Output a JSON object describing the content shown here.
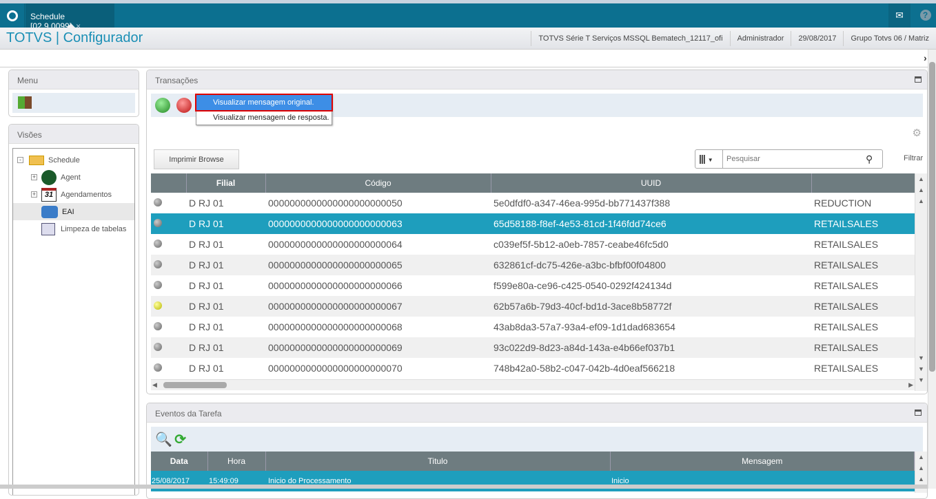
{
  "tab": {
    "title": "Schedule [02.9.0099]",
    "close": "×"
  },
  "header": {
    "app_title": "TOTVS | Configurador",
    "environment": "TOTVS Série T Serviços MSSQL Bematech_12117_ofi",
    "user": "Administrador",
    "date": "29/08/2017",
    "company": "Grupo Totvs 06 / Matriz"
  },
  "icons": {
    "mail": "✉",
    "help": "?",
    "collapse": "›"
  },
  "menu": {
    "title": "Menu"
  },
  "visoes": {
    "title": "Visões",
    "tree": [
      {
        "label": "Schedule",
        "icon": "folder-open-icon"
      },
      {
        "label": "Agent",
        "icon": "radar-icon"
      },
      {
        "label": "Agendamentos",
        "icon": "calendar-icon",
        "badge": "31"
      },
      {
        "label": "EAI",
        "icon": "puzzle-icon"
      },
      {
        "label": "Limpeza de tabelas",
        "icon": "clean-table-icon"
      }
    ]
  },
  "transacoes": {
    "title": "Transações",
    "context_menu": [
      "Visualizar mensagem original.",
      "Visualizar mensagem de resposta."
    ],
    "print_button": "Imprimir Browse",
    "search_placeholder": "Pesquisar",
    "filter": "Filtrar",
    "columns": [
      "",
      "Filial",
      "Código",
      "UUID",
      ""
    ],
    "rows": [
      {
        "status": "gray",
        "filial": "D RJ 01",
        "codigo": "0000000000000000000000050",
        "uuid": "5e0dfdf0-a347-46ea-995d-bb771437f388",
        "tipo": "REDUCTION"
      },
      {
        "status": "gray",
        "filial": "D RJ 01",
        "codigo": "0000000000000000000000063",
        "uuid": "65d58188-f8ef-4e53-81cd-1f46fdd74ce6",
        "tipo": "RETAILSALES",
        "selected": true
      },
      {
        "status": "gray",
        "filial": "D RJ 01",
        "codigo": "0000000000000000000000064",
        "uuid": "c039ef5f-5b12-a0eb-7857-ceabe46fc5d0",
        "tipo": "RETAILSALES"
      },
      {
        "status": "gray",
        "filial": "D RJ 01",
        "codigo": "0000000000000000000000065",
        "uuid": "632861cf-dc75-426e-a3bc-bfbf00f04800",
        "tipo": "RETAILSALES"
      },
      {
        "status": "gray",
        "filial": "D RJ 01",
        "codigo": "0000000000000000000000066",
        "uuid": "f599e80a-ce96-c425-0540-0292f424134d",
        "tipo": "RETAILSALES"
      },
      {
        "status": "yellow",
        "filial": "D RJ 01",
        "codigo": "0000000000000000000000067",
        "uuid": "62b57a6b-79d3-40cf-bd1d-3ace8b58772f",
        "tipo": "RETAILSALES"
      },
      {
        "status": "gray",
        "filial": "D RJ 01",
        "codigo": "0000000000000000000000068",
        "uuid": "43ab8da3-57a7-93a4-ef09-1d1dad683654",
        "tipo": "RETAILSALES"
      },
      {
        "status": "gray",
        "filial": "D RJ 01",
        "codigo": "0000000000000000000000069",
        "uuid": "93c022d9-8d23-a84d-143a-e4b66ef037b1",
        "tipo": "RETAILSALES"
      },
      {
        "status": "gray",
        "filial": "D RJ 01",
        "codigo": "0000000000000000000000070",
        "uuid": "748b42a0-58b2-c047-042b-4d0eaf566218",
        "tipo": "RETAILSALES"
      }
    ]
  },
  "eventos": {
    "title": "Eventos da Tarefa",
    "columns": [
      "Data",
      "Hora",
      "Titulo",
      "Mensagem"
    ],
    "rows": [
      {
        "data": "25/08/2017",
        "hora": "15:49:09",
        "titulo": "Inicio do Processamento",
        "mensagem": "Inicio"
      }
    ]
  },
  "colors": {
    "accent": "#0c7090",
    "selected_row": "#1e9ebd",
    "title": "#1b8fb5",
    "highlight_box": "#e00000"
  }
}
